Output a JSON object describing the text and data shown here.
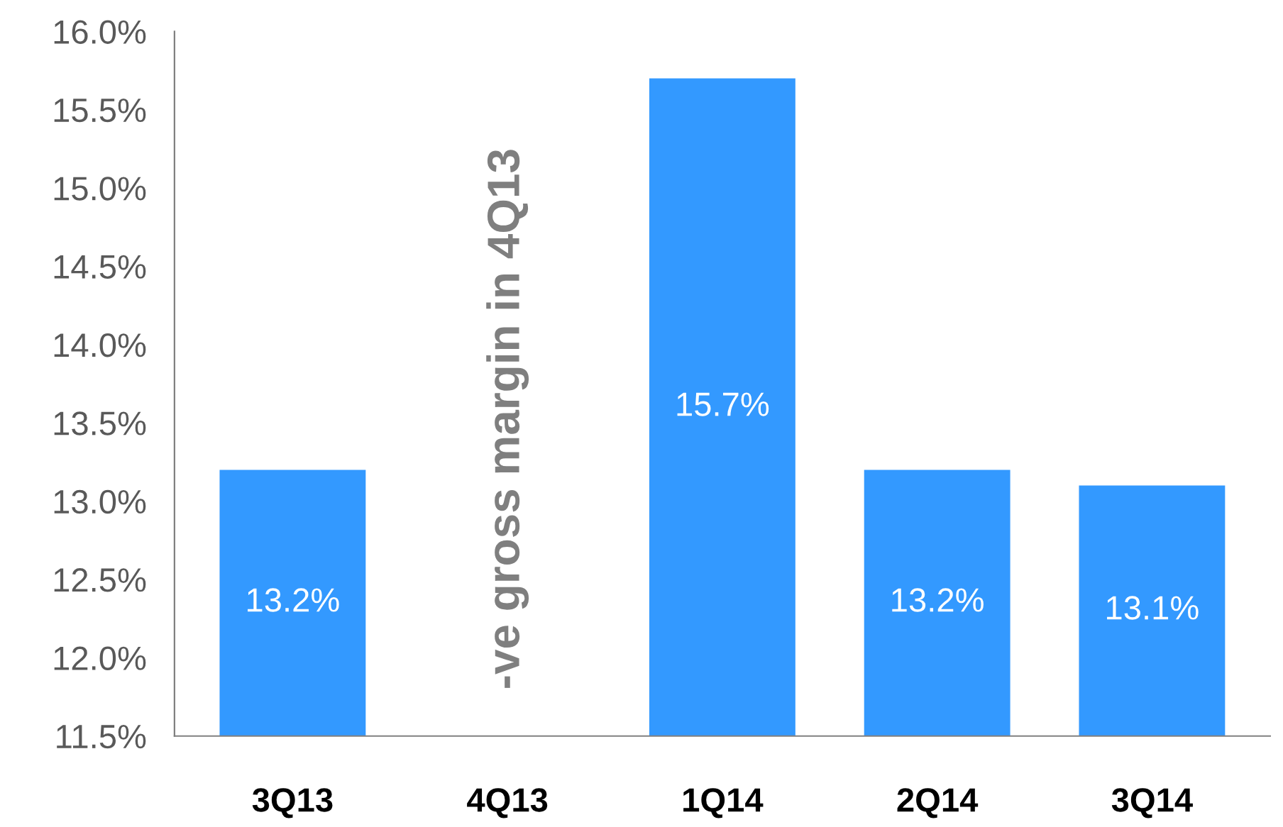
{
  "chart_data": {
    "type": "bar",
    "categories": [
      "3Q13",
      "4Q13",
      "1Q14",
      "2Q14",
      "3Q14"
    ],
    "values": [
      13.2,
      null,
      15.7,
      13.2,
      13.1
    ],
    "value_labels": [
      "13.2%",
      null,
      "15.7%",
      "13.2%",
      "13.1%"
    ],
    "color": "#3399ff",
    "ylim": [
      11.5,
      16.0
    ],
    "yticks": [
      {
        "value": 11.5,
        "label": "11.5%"
      },
      {
        "value": 12.0,
        "label": "12.0%"
      },
      {
        "value": 12.5,
        "label": "12.5%"
      },
      {
        "value": 13.0,
        "label": "13.0%"
      },
      {
        "value": 13.5,
        "label": "13.5%"
      },
      {
        "value": 14.0,
        "label": "14.0%"
      },
      {
        "value": 14.5,
        "label": "14.5%"
      },
      {
        "value": 15.0,
        "label": "15.0%"
      },
      {
        "value": 15.5,
        "label": "15.5%"
      },
      {
        "value": 16.0,
        "label": "16.0%"
      }
    ],
    "annotations": [
      "-ve gross margin in 4Q13"
    ],
    "grid": false,
    "legend": false
  }
}
